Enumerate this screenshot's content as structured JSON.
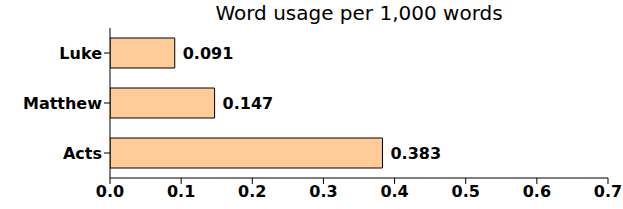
{
  "chart_data": {
    "type": "bar",
    "title": "Word usage per 1,000 words",
    "orientation": "horizontal",
    "categories": [
      "Luke",
      "Matthew",
      "Acts"
    ],
    "values": [
      0.091,
      0.147,
      0.383
    ],
    "color": "#ffcc99",
    "xlim": [
      0,
      0.7
    ],
    "xticks": [
      {
        "value": 0,
        "label": "0.0"
      },
      0.1,
      0.2,
      0.3,
      0.4,
      0.5,
      0.6,
      0.7
    ],
    "grid": false,
    "data_labels": true
  }
}
